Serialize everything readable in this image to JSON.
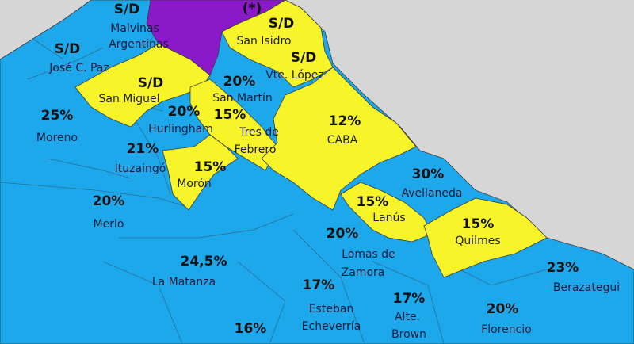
{
  "colors": {
    "background": "#d6d6d6",
    "blue": "#1ea8ec",
    "yellow": "#f7f52a",
    "purple": "#8a19c9",
    "border": "#3a3a3a"
  },
  "regions": {
    "malvinas": {
      "name": "Malvinas Argentinas",
      "name_l1": "Malvinas",
      "name_l2": "Argentinas",
      "value": "S/D",
      "color": "blue"
    },
    "tigre": {
      "name": "",
      "value": "(*)",
      "color": "purple"
    },
    "jose_c_paz": {
      "name": "José C. Paz",
      "value": "S/D",
      "color": "blue"
    },
    "san_isidro": {
      "name": "San Isidro",
      "value": "S/D",
      "color": "yellow"
    },
    "vte_lopez": {
      "name": "Vte. López",
      "value": "S/D",
      "color": "yellow"
    },
    "san_miguel": {
      "name": "San Miguel",
      "value": "S/D",
      "color": "yellow"
    },
    "san_martin": {
      "name": "San Martín",
      "value": "20%",
      "color": "blue"
    },
    "moreno": {
      "name": "Moreno",
      "value": "25%",
      "color": "blue"
    },
    "hurlingham": {
      "name": "Hurlingham",
      "value": "20%",
      "color": "blue"
    },
    "tres_de_febrero": {
      "name": "Tres de Febrero",
      "name_l1": "Tres de",
      "name_l2": "Febrero",
      "value": "15%",
      "color": "yellow"
    },
    "caba": {
      "name": "CABA",
      "value": "12%",
      "color": "yellow"
    },
    "ituzaingo": {
      "name": "Ituzaingó",
      "value": "21%",
      "color": "blue"
    },
    "moron": {
      "name": "Morón",
      "value": "15%",
      "color": "yellow"
    },
    "avellaneda": {
      "name": "Avellaneda",
      "value": "30%",
      "color": "blue"
    },
    "merlo": {
      "name": "Merlo",
      "value": "20%",
      "color": "blue"
    },
    "lanus": {
      "name": "Lanús",
      "value": "15%",
      "color": "yellow"
    },
    "quilmes": {
      "name": "Quilmes",
      "value": "15%",
      "color": "yellow"
    },
    "lomas_de_zamora": {
      "name": "Lomas de Zamora",
      "name_l1": "Lomas de",
      "name_l2": "Zamora",
      "value": "20%",
      "color": "blue"
    },
    "la_matanza": {
      "name": "La Matanza",
      "value": "24,5%",
      "color": "blue"
    },
    "berazategui": {
      "name": "Berazategui",
      "value": "23%",
      "color": "blue"
    },
    "esteban_echeverria": {
      "name": "Esteban Echeverría",
      "name_l1": "Esteban",
      "name_l2": "Echeverría",
      "value": "17%",
      "color": "blue"
    },
    "alte_brown": {
      "name": "Alte. Brown",
      "name_l1": "Alte.",
      "name_l2": "Brown",
      "value": "17%",
      "color": "blue"
    },
    "florencio_varela": {
      "name": "Florencio Varela",
      "name_l1": "Florencio",
      "value": "20%",
      "color": "blue"
    },
    "ezeiza": {
      "name": "",
      "value": "16%",
      "color": "blue"
    }
  }
}
